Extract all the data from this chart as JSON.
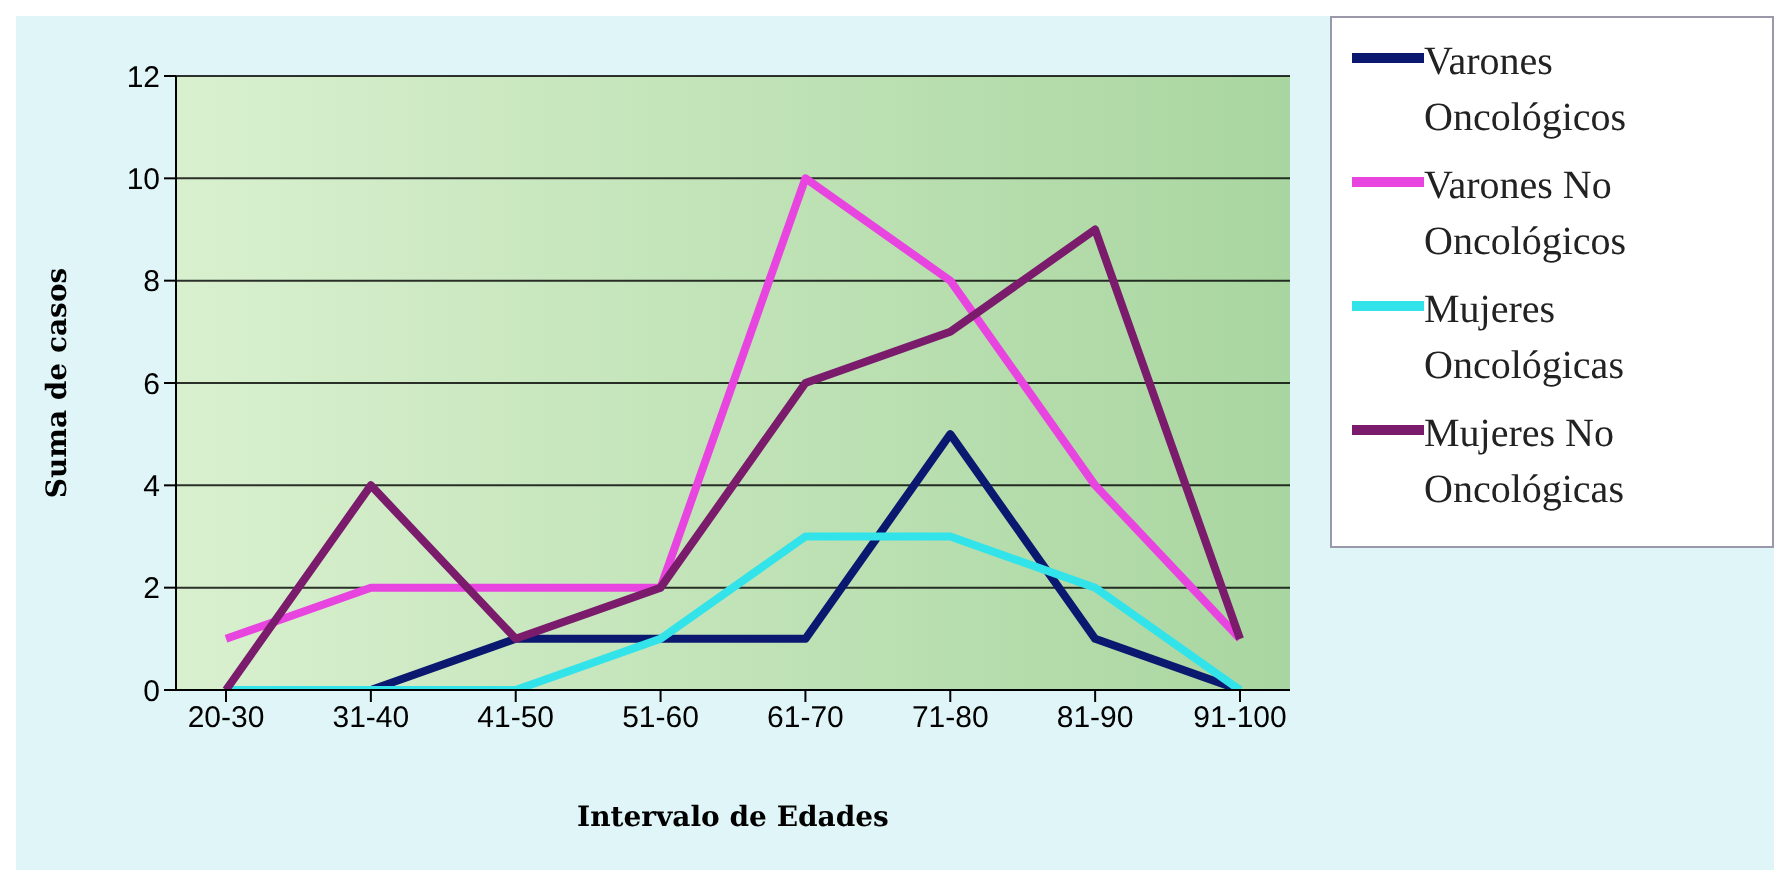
{
  "chart_data": {
    "type": "line",
    "xlabel": "Intervalo de Edades",
    "ylabel": "Suma de casos",
    "categories": [
      "20-30",
      "31-40",
      "41-50",
      "51-60",
      "61-70",
      "71-80",
      "81-90",
      "91-100"
    ],
    "series": [
      {
        "name": "Varones Oncológicos",
        "color": "#0b1870",
        "values": [
          0,
          0,
          1,
          1,
          1,
          5,
          1,
          0
        ]
      },
      {
        "name": "Varones No Oncológicos",
        "color": "#e844e0",
        "values": [
          1,
          2,
          2,
          2,
          10,
          8,
          4,
          1
        ]
      },
      {
        "name": "Mujeres Oncológicas",
        "color": "#33e3ea",
        "values": [
          0,
          0,
          0,
          1,
          3,
          3,
          2,
          0
        ]
      },
      {
        "name": "Mujeres No Oncológicas",
        "color": "#7a1b6c",
        "values": [
          0,
          4,
          1,
          2,
          6,
          7,
          9,
          1
        ]
      }
    ],
    "ylim": [
      0,
      12
    ],
    "yticks": [
      0,
      2,
      4,
      6,
      8,
      10,
      12
    ],
    "grid": "y",
    "legend": "right",
    "marker": "none",
    "line_style": "solid"
  }
}
